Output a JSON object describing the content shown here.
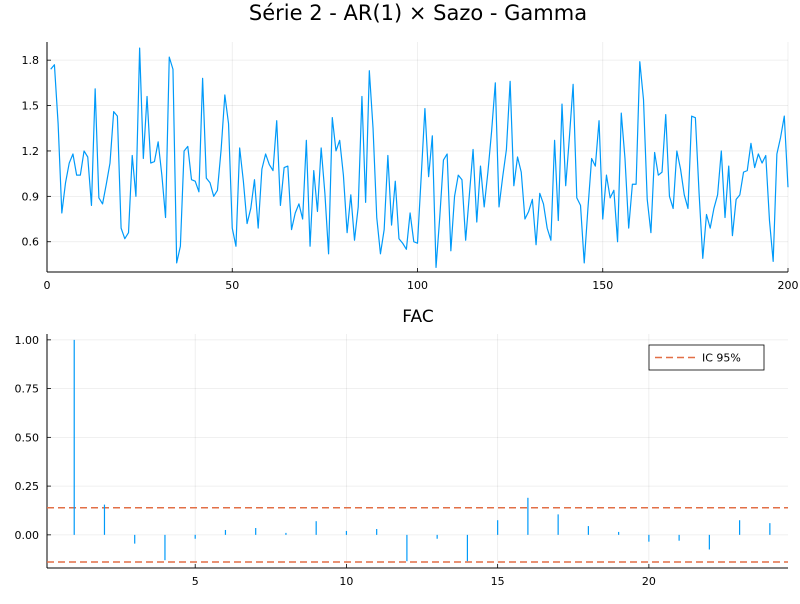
{
  "chart_data": [
    {
      "type": "line",
      "title": "Série 2 - AR(1) × Sazo - Gamma",
      "xlabel": "",
      "ylabel": "",
      "xlim": [
        0,
        200
      ],
      "ylim": [
        0.4,
        1.92
      ],
      "xticks": [
        0,
        50,
        100,
        150,
        200
      ],
      "yticks": [
        0.6,
        0.9,
        1.2,
        1.5,
        1.8
      ],
      "ytick_labels": [
        "0.6",
        "0.9",
        "1.2",
        "1.5",
        "1.8"
      ],
      "grid": true,
      "color": "#009af9",
      "series": [
        {
          "values": [
            1.74,
            1.77,
            1.38,
            0.79,
            0.99,
            1.12,
            1.18,
            1.04,
            1.04,
            1.2,
            1.16,
            0.84,
            1.61,
            0.89,
            0.85,
            0.98,
            1.12,
            1.46,
            1.43,
            0.69,
            0.62,
            0.66,
            1.17,
            0.9,
            1.88,
            1.15,
            1.56,
            1.12,
            1.13,
            1.26,
            1.04,
            0.76,
            1.82,
            1.74,
            0.46,
            0.57,
            1.2,
            1.23,
            1.01,
            1.0,
            0.93,
            1.68,
            1.02,
            0.99,
            0.9,
            0.94,
            1.21,
            1.57,
            1.38,
            0.69,
            0.57,
            1.22,
            1.0,
            0.72,
            0.82,
            1.01,
            0.69,
            1.08,
            1.18,
            1.11,
            1.07,
            1.4,
            0.84,
            1.09,
            1.1,
            0.68,
            0.79,
            0.85,
            0.75,
            1.27,
            0.57,
            1.07,
            0.8,
            1.22,
            0.92,
            0.52,
            1.42,
            1.2,
            1.27,
            1.04,
            0.66,
            0.91,
            0.61,
            0.83,
            1.56,
            0.86,
            1.73,
            1.35,
            0.76,
            0.52,
            0.68,
            1.17,
            0.71,
            1.0,
            0.62,
            0.59,
            0.55,
            0.79,
            0.6,
            0.59,
            1.03,
            1.48,
            1.03,
            1.3,
            0.43,
            0.76,
            1.14,
            1.18,
            0.54,
            0.9,
            1.04,
            1.01,
            0.61,
            0.91,
            1.21,
            0.73,
            1.1,
            0.83,
            1.06,
            1.33,
            1.65,
            0.83,
            1.03,
            1.21,
            1.66,
            0.97,
            1.16,
            1.06,
            0.75,
            0.8,
            0.88,
            0.58,
            0.92,
            0.85,
            0.69,
            0.61,
            1.27,
            0.74,
            1.51,
            0.97,
            1.29,
            1.64,
            0.89,
            0.84,
            0.46,
            0.82,
            1.15,
            1.1,
            1.4,
            0.75,
            1.04,
            0.89,
            0.94,
            0.6,
            1.45,
            1.15,
            0.69,
            0.98,
            0.98,
            1.79,
            1.54,
            0.88,
            0.66,
            1.19,
            1.04,
            1.06,
            1.44,
            0.9,
            0.82,
            1.2,
            1.08,
            0.91,
            0.82,
            1.43,
            1.42,
            0.92,
            0.49,
            0.78,
            0.69,
            0.82,
            0.91,
            1.2,
            0.76,
            1.1,
            0.64,
            0.88,
            0.91,
            1.06,
            1.07,
            1.25,
            1.09,
            1.18,
            1.12,
            1.17,
            0.74,
            0.47,
            1.18,
            1.29,
            1.43,
            0.96
          ]
        }
      ]
    },
    {
      "type": "bar",
      "title": "FAC",
      "xlabel": "",
      "ylabel": "",
      "xlim": [
        0.1,
        24.6
      ],
      "ylim": [
        -0.17,
        1.03
      ],
      "xticks": [
        5,
        10,
        15,
        20
      ],
      "yticks": [
        0.0,
        0.25,
        0.5,
        0.75,
        1.0
      ],
      "ytick_labels": [
        "0.00",
        "0.25",
        "0.50",
        "0.75",
        "1.00"
      ],
      "grid": true,
      "color": "#009af9",
      "lags": [
        1,
        2,
        3,
        4,
        5,
        6,
        7,
        8,
        9,
        10,
        11,
        12,
        13,
        14,
        15,
        16,
        17,
        18,
        19,
        20,
        21,
        22,
        23,
        24
      ],
      "values": [
        1.0,
        0.155,
        -0.045,
        -0.13,
        -0.02,
        0.025,
        0.035,
        0.01,
        0.07,
        0.02,
        0.03,
        -0.135,
        -0.02,
        -0.135,
        0.075,
        0.19,
        0.105,
        0.045,
        0.015,
        -0.035,
        -0.03,
        -0.075,
        0.075,
        0.06
      ],
      "confidence_band": {
        "label": "IC 95%",
        "upper": 0.139,
        "lower": -0.139,
        "color": "#e26f46",
        "style": "dashed"
      },
      "legend": {
        "entries": [
          "IC 95%"
        ],
        "position": "top-right"
      }
    }
  ]
}
